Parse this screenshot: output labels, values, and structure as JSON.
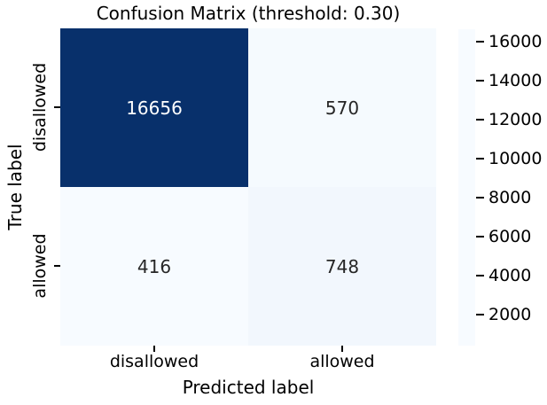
{
  "chart_data": {
    "type": "heatmap",
    "title": "Confusion Matrix (threshold: 0.30)",
    "xlabel": "Predicted label",
    "ylabel": "True label",
    "x_categories": [
      "disallowed",
      "allowed"
    ],
    "y_categories": [
      "disallowed",
      "allowed"
    ],
    "matrix": [
      [
        16656,
        570
      ],
      [
        416,
        748
      ]
    ],
    "vmin": 416,
    "vmax": 16656,
    "colormap": "Blues",
    "colorbar_ticks": [
      2000,
      4000,
      6000,
      8000,
      10000,
      12000,
      14000,
      16000
    ],
    "colormap_stops": [
      {
        "pos": 0.0,
        "color": "#f7fbff"
      },
      {
        "pos": 0.125,
        "color": "#deebf7"
      },
      {
        "pos": 0.25,
        "color": "#c6dbef"
      },
      {
        "pos": 0.375,
        "color": "#9ecae1"
      },
      {
        "pos": 0.5,
        "color": "#6baed6"
      },
      {
        "pos": 0.625,
        "color": "#4292c6"
      },
      {
        "pos": 0.75,
        "color": "#2171b5"
      },
      {
        "pos": 0.875,
        "color": "#08519c"
      },
      {
        "pos": 1.0,
        "color": "#08306b"
      }
    ],
    "cell_colors": [
      [
        "#08306b",
        "#f5fafe"
      ],
      [
        "#f7fbff",
        "#f2f7fd"
      ]
    ],
    "cell_text_colors": [
      [
        "#ffffff",
        "#262626"
      ],
      [
        "#262626",
        "#262626"
      ]
    ],
    "axis_text_color": "#000000",
    "legend_position": "right-colorbar",
    "grid": false
  }
}
